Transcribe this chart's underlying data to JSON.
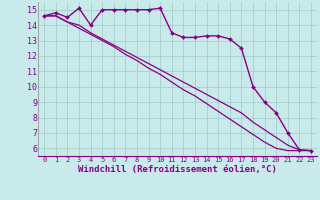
{
  "background_color": "#c8eaea",
  "grid_color": "#a8cece",
  "line_color": "#880088",
  "xlabel": "Windchill (Refroidissement éolien,°C)",
  "xlabel_fontsize": 6.5,
  "ylim": [
    5.5,
    15.5
  ],
  "xlim": [
    -0.5,
    23.5
  ],
  "yticks": [
    6,
    7,
    8,
    9,
    10,
    11,
    12,
    13,
    14,
    15
  ],
  "xticks": [
    0,
    1,
    2,
    3,
    4,
    5,
    6,
    7,
    8,
    9,
    10,
    11,
    12,
    13,
    14,
    15,
    16,
    17,
    18,
    19,
    20,
    21,
    22,
    23
  ],
  "series": [
    {
      "y": [
        14.6,
        14.8,
        14.5,
        15.1,
        14.0,
        15.0,
        15.0,
        15.0,
        15.0,
        15.0,
        15.1,
        13.5,
        13.2,
        13.2,
        13.3,
        13.3,
        13.1,
        12.5,
        10.0,
        9.0,
        8.3,
        7.0,
        5.9,
        5.85
      ],
      "marker": true,
      "lw": 1.0
    },
    {
      "y": [
        14.6,
        14.6,
        14.2,
        14.0,
        13.5,
        13.1,
        12.7,
        12.3,
        11.9,
        11.5,
        11.1,
        10.7,
        10.3,
        9.9,
        9.5,
        9.1,
        8.7,
        8.3,
        7.7,
        7.2,
        6.7,
        6.2,
        5.9,
        5.85
      ],
      "marker": false,
      "lw": 0.9
    },
    {
      "y": [
        14.6,
        14.6,
        14.2,
        13.8,
        13.4,
        13.0,
        12.6,
        12.1,
        11.7,
        11.2,
        10.8,
        10.3,
        9.8,
        9.4,
        8.9,
        8.4,
        7.9,
        7.4,
        6.9,
        6.4,
        6.0,
        5.85,
        5.85,
        5.85
      ],
      "marker": false,
      "lw": 0.9
    }
  ]
}
